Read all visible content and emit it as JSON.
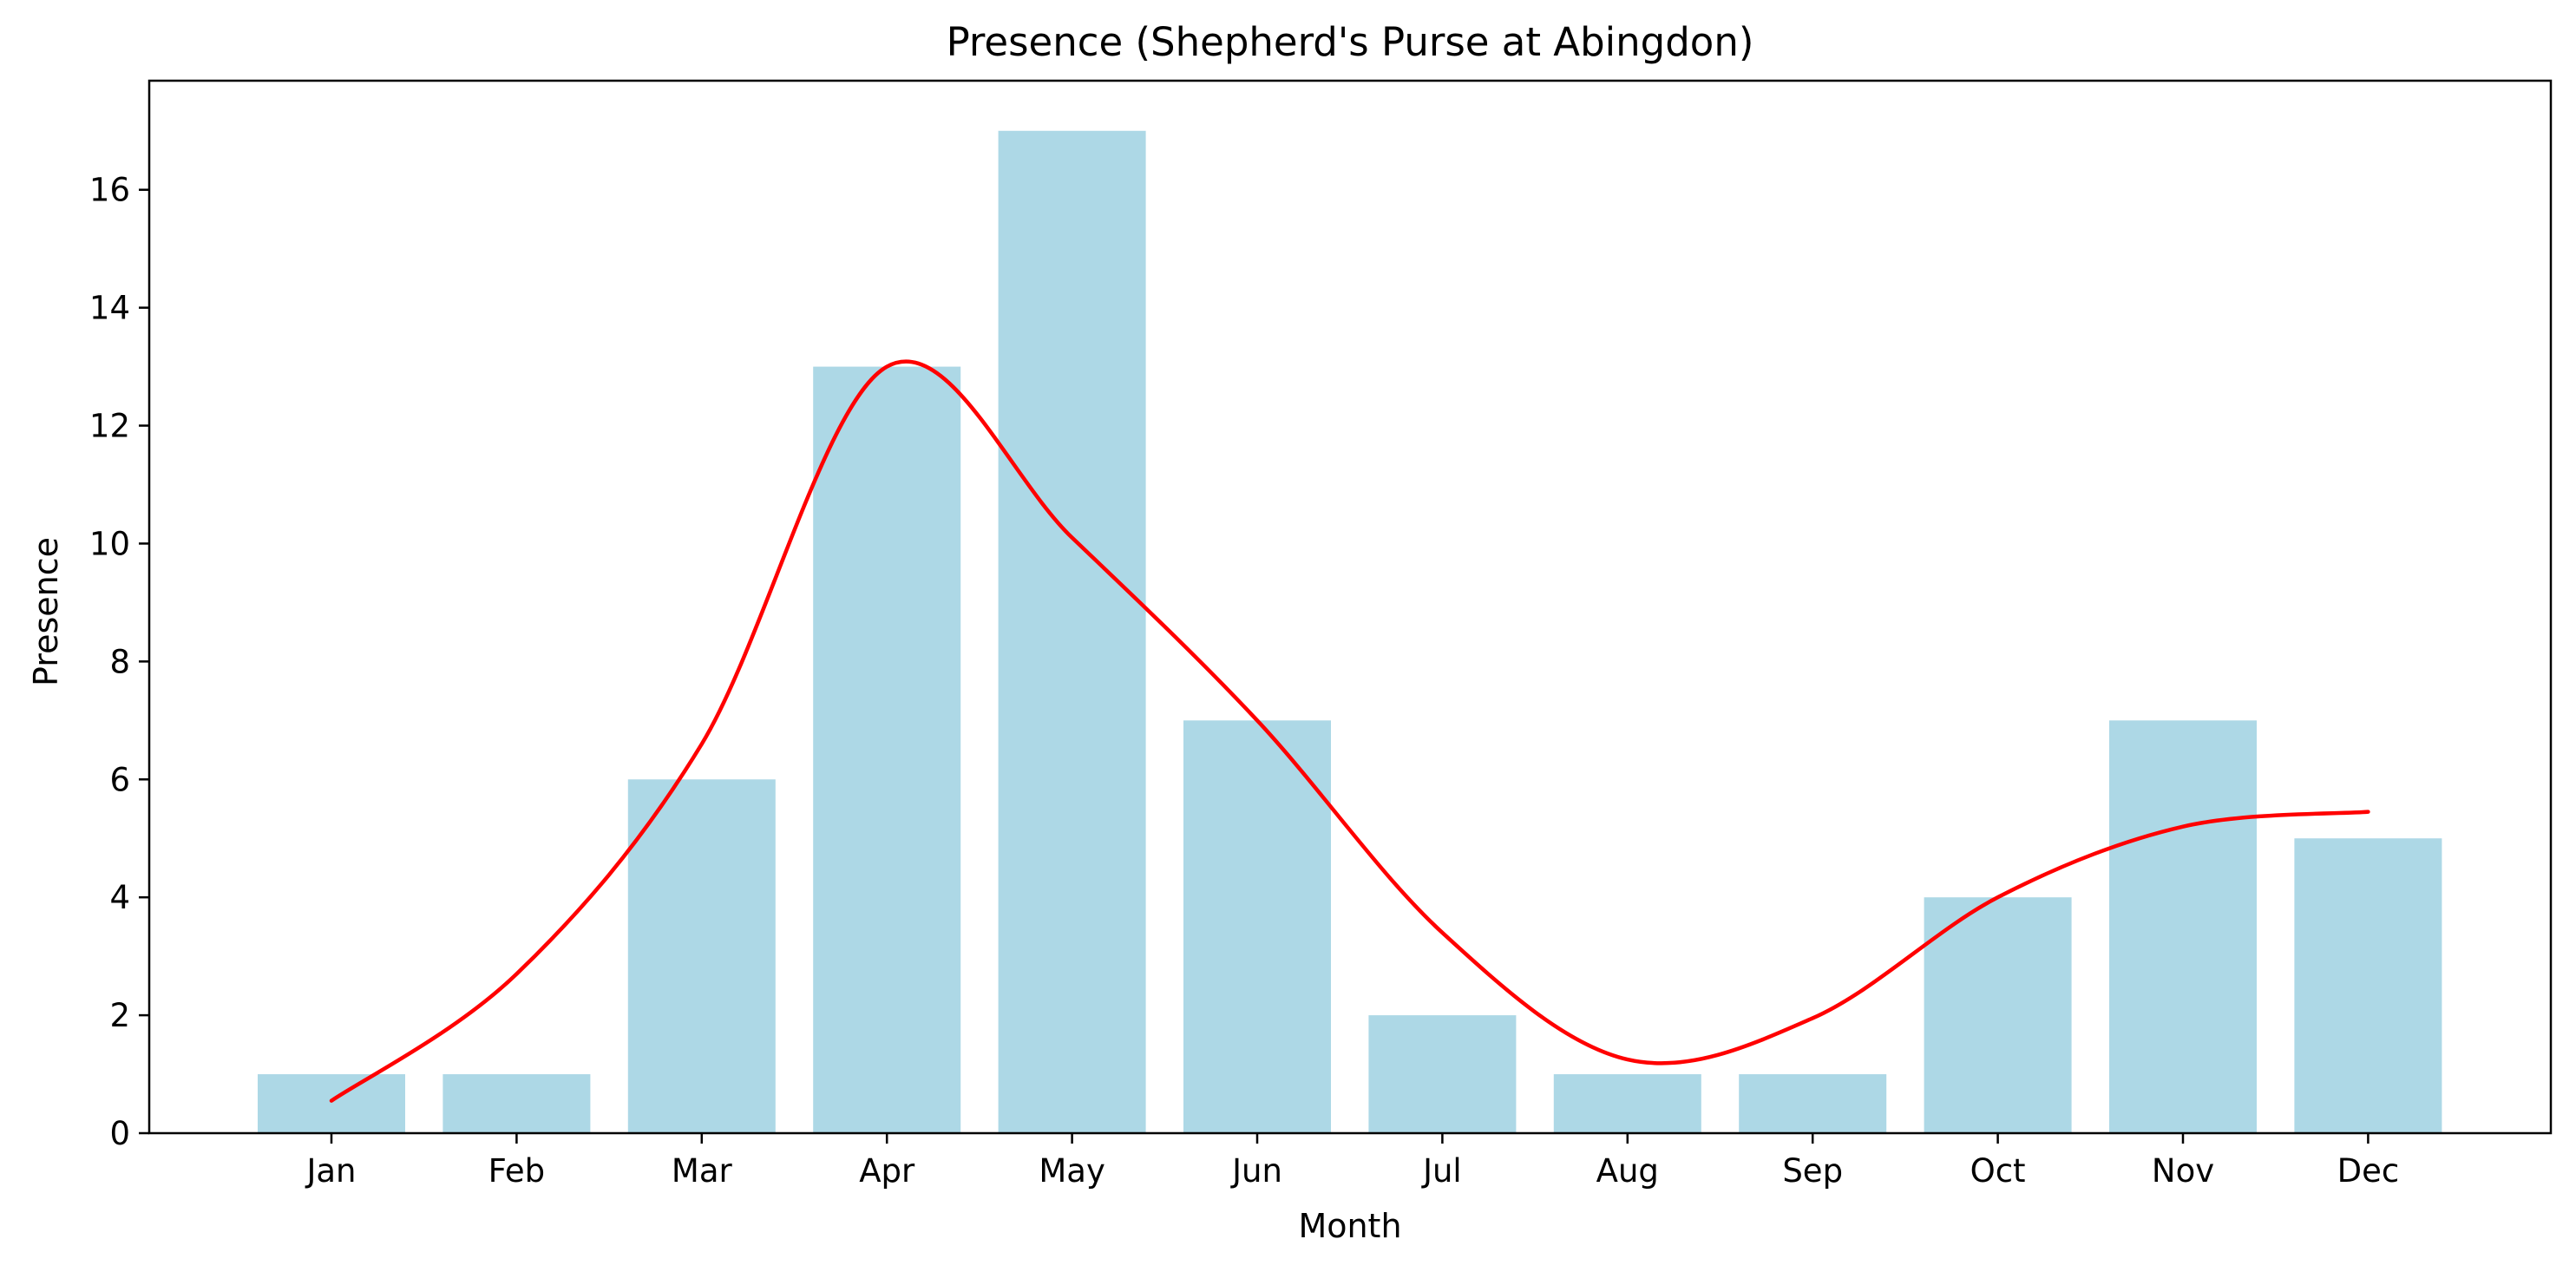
{
  "chart_data": {
    "type": "bar",
    "title": "Presence (Shepherd's Purse at Abingdon)",
    "xlabel": "Month",
    "ylabel": "Presence",
    "categories": [
      "Jan",
      "Feb",
      "Mar",
      "Apr",
      "May",
      "Jun",
      "Jul",
      "Aug",
      "Sep",
      "Oct",
      "Nov",
      "Dec"
    ],
    "series": [
      {
        "type": "bar",
        "values": [
          1,
          1,
          6,
          13,
          17,
          7,
          2,
          1,
          1,
          4,
          7,
          5
        ],
        "color": "#add8e6"
      },
      {
        "type": "line",
        "values": [
          0.55,
          2.7,
          6.6,
          13.0,
          10.1,
          7.0,
          3.4,
          1.25,
          1.95,
          4.0,
          5.2,
          5.45
        ],
        "color": "#ff0000"
      }
    ],
    "ylim": [
      0,
      17.85
    ],
    "yticks": [
      0,
      2,
      4,
      6,
      8,
      10,
      12,
      14,
      16
    ],
    "grid": false,
    "legend": "none"
  }
}
